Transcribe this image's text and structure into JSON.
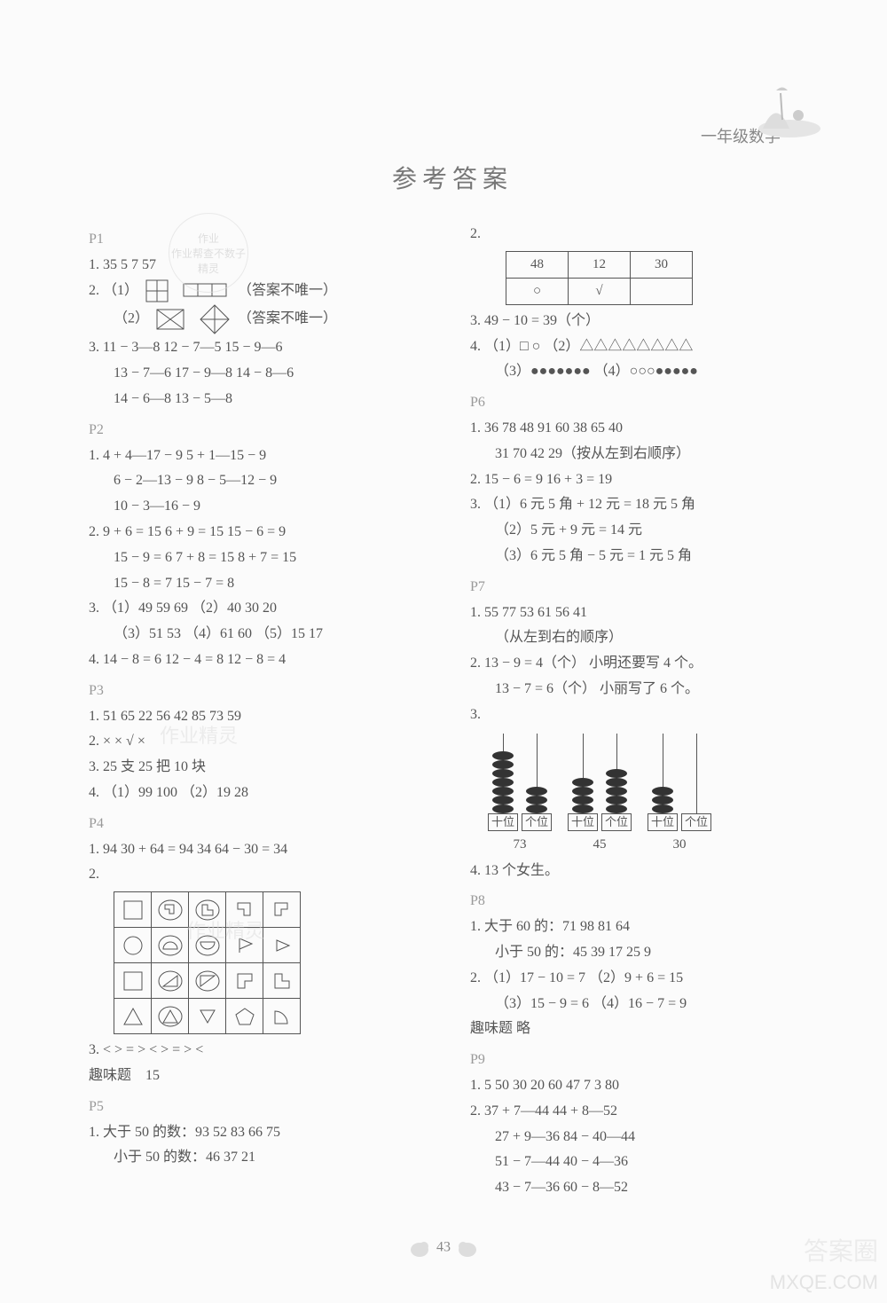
{
  "header": {
    "grade": "一年级数学"
  },
  "title": "参考答案",
  "pageNumber": "43",
  "stamp": {
    "line1": "作业",
    "line2": "作业帮查不数子",
    "line3": "精灵"
  },
  "watermarks": {
    "brand": "MXQE.COM",
    "corner": "答案圈",
    "mid1": "作业精灵",
    "mid2": "作业精灵"
  },
  "left": {
    "P1": {
      "label": "P1",
      "q1": "1.  35   5   7   57",
      "q2a": "2.  （1）",
      "q2a_note": "（答案不唯一）",
      "q2b": "（2）",
      "q2b_note": "（答案不唯一）",
      "q3_1": "3.  11 − 3—8    12 − 7—5    15 − 9—6",
      "q3_2": "13 − 7—6    17 − 9—8    14 − 8—6",
      "q3_3": "14 − 6—8    13 − 5—8"
    },
    "P2": {
      "label": "P2",
      "q1_1": "1.  4 + 4—17 − 9    5 + 1—15 − 9",
      "q1_2": "6 − 2—13 − 9    8 − 5—12 − 9",
      "q1_3": "10 − 3—16 − 9",
      "q2_1": "2.  9 + 6 = 15    6 + 9 = 15    15 − 6 = 9",
      "q2_2": "15 − 9 = 6    7 + 8 = 15    8 + 7 = 15",
      "q2_3": "15 − 8 = 7    15 − 7 = 8",
      "q3_1": "3.  （1）49    59    69   （2）40    30    20",
      "q3_2": "（3）51    53   （4）61    60   （5）15    17",
      "q4": "4.  14 − 8 = 6    12 − 4 = 8    12 − 8 = 4"
    },
    "P3": {
      "label": "P3",
      "q1": "1.  51   65   22   56   42   85   73   59",
      "q2": "2.  ×     ×     √     ×",
      "q3": "3.  25 支   25 把   10 块",
      "q4": "4.  （1）99    100   （2）19    28"
    },
    "P4": {
      "label": "P4",
      "q1": "1.  94    30 + 64 = 94    34    64 − 30 = 34",
      "q2": "2.",
      "q3": "3.   <    >    =    >    <    >    =    >    <",
      "fun_label": "趣味题",
      "fun": "15"
    },
    "P5": {
      "label": "P5",
      "q1_1": "1.  大于 50 的数：93    52    83    66    75",
      "q1_2": "小于 50 的数：46    37    21"
    }
  },
  "right": {
    "q2": {
      "label": "2.",
      "table": [
        [
          "48",
          "12",
          "30"
        ],
        [
          "○",
          "√",
          ""
        ]
      ]
    },
    "q3": "3.   49 − 10 = 39（个）",
    "q4_1": "4.  （1）□   ○   （2）△△△△△△△△",
    "q4_2": "（3）●●●●●●●   （4）○○○●●●●●",
    "P6": {
      "label": "P6",
      "q1_1": "1.  36   78   48   91   60   38   65   40",
      "q1_2": "31   70   42   29（按从左到右顺序）",
      "q2": "2.  15 − 6 = 9    16 + 3 = 19",
      "q3_1": "3.  （1）6 元 5 角 + 12 元 = 18 元 5 角",
      "q3_2": "（2）5 元 + 9 元 = 14 元",
      "q3_3": "（3）6 元 5 角 − 5 元 = 1 元 5 角"
    },
    "P7": {
      "label": "P7",
      "q1_1": "1.  55   77   53   61   56   41",
      "q1_2": "（从左到右的顺序）",
      "q2_1": "2.  13 − 9 = 4（个）   小明还要写 4 个。",
      "q2_2": "13 − 7 = 6（个）   小丽写了 6 个。",
      "q3": "3.",
      "abacus": [
        {
          "tens": 7,
          "ones": 3,
          "label": "73"
        },
        {
          "tens": 4,
          "ones": 5,
          "label": "45"
        },
        {
          "tens": 3,
          "ones": 0,
          "label": "30"
        }
      ],
      "rod_tens": "十位",
      "rod_ones": "个位",
      "q4": "4.  13 个女生。"
    },
    "P8": {
      "label": "P8",
      "q1_1": "1.  大于 60 的：71   98   81   64",
      "q1_2": "小于 50 的：45   39   17   25   9",
      "q2_1": "2.  （1）17 − 10 = 7   （2）9 + 6 = 15",
      "q2_2": "（3）15 − 9 = 6   （4）16 − 7 = 9",
      "fun": "趣味题    略"
    },
    "P9": {
      "label": "P9",
      "q1": "1.  5   50   30   20   60   47   7   3   80",
      "q2_1": "2.  37 + 7—44    44 + 8—52",
      "q2_2": "27 + 9—36    84 − 40—44",
      "q2_3": "51 − 7—44    40 − 4—36",
      "q2_4": "43 − 7—36    60 − 8—52"
    }
  }
}
